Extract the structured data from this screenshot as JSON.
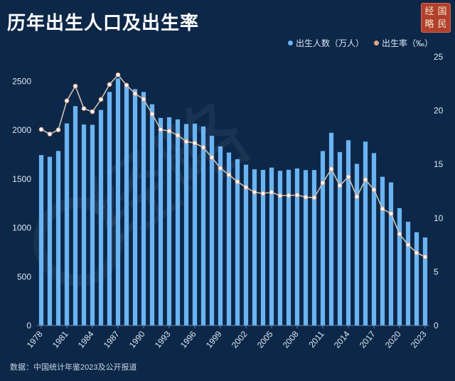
{
  "title": "历年出生人口及出生率",
  "seal": [
    "经",
    "国",
    "略",
    "民"
  ],
  "watermark": "经略",
  "source": "数据：中国统计年鉴2023及公开报道",
  "colors": {
    "background": "#0d2748",
    "bar": "#6ab4f2",
    "line": "#c9c3b5",
    "marker_fill": "#ffffff",
    "marker_stroke": "#e2a58a",
    "seal": "#b1402d"
  },
  "chart_data": {
    "type": "bar",
    "title": "历年出生人口及出生率",
    "x": [
      1978,
      1979,
      1980,
      1981,
      1982,
      1983,
      1984,
      1985,
      1986,
      1987,
      1988,
      1989,
      1990,
      1991,
      1992,
      1993,
      1994,
      1995,
      1996,
      1997,
      1998,
      1999,
      2000,
      2001,
      2002,
      2003,
      2004,
      2005,
      2006,
      2007,
      2008,
      2009,
      2010,
      2011,
      2012,
      2013,
      2014,
      2015,
      2016,
      2017,
      2018,
      2019,
      2020,
      2021,
      2022,
      2023
    ],
    "x_tick_labels": [
      "1978",
      "1981",
      "1984",
      "1987",
      "1990",
      "1993",
      "1996",
      "1999",
      "2002",
      "2005",
      "2008",
      "2011",
      "2014",
      "2017",
      "2020",
      "2023"
    ],
    "series": [
      {
        "name": "出生人数（万人）",
        "type": "bar",
        "axis": "left",
        "values": [
          1745,
          1727,
          1787,
          2069,
          2246,
          2058,
          2055,
          2207,
          2391,
          2529,
          2466,
          2420,
          2391,
          2265,
          2125,
          2132,
          2110,
          2063,
          2067,
          2038,
          1942,
          1834,
          1771,
          1702,
          1647,
          1599,
          1593,
          1617,
          1584,
          1594,
          1608,
          1591,
          1592,
          1786,
          1973,
          1776,
          1897,
          1655,
          1883,
          1765,
          1523,
          1465,
          1202,
          1062,
          956,
          902
        ]
      },
      {
        "name": "出生率（‰）",
        "type": "line",
        "axis": "right",
        "values": [
          18.25,
          17.82,
          18.21,
          20.91,
          22.28,
          20.19,
          19.9,
          21.04,
          22.43,
          23.33,
          22.37,
          21.58,
          21.06,
          19.68,
          18.24,
          18.09,
          17.7,
          17.12,
          16.98,
          16.57,
          15.64,
          14.64,
          14.03,
          13.38,
          12.86,
          12.41,
          12.29,
          12.4,
          12.09,
          12.1,
          12.14,
          11.95,
          11.9,
          13.27,
          14.57,
          13.03,
          13.83,
          11.99,
          13.57,
          12.64,
          10.86,
          10.41,
          8.52,
          7.52,
          6.77,
          6.39
        ]
      }
    ],
    "y_left": {
      "ticks": [
        0,
        500,
        1000,
        1500,
        2000,
        2500
      ],
      "ylim": [
        0,
        2750
      ]
    },
    "y_right": {
      "ticks": [
        0,
        5,
        10,
        15,
        20,
        25
      ],
      "ylim": [
        0,
        25
      ]
    },
    "legend_position": "top-right",
    "grid": false
  }
}
